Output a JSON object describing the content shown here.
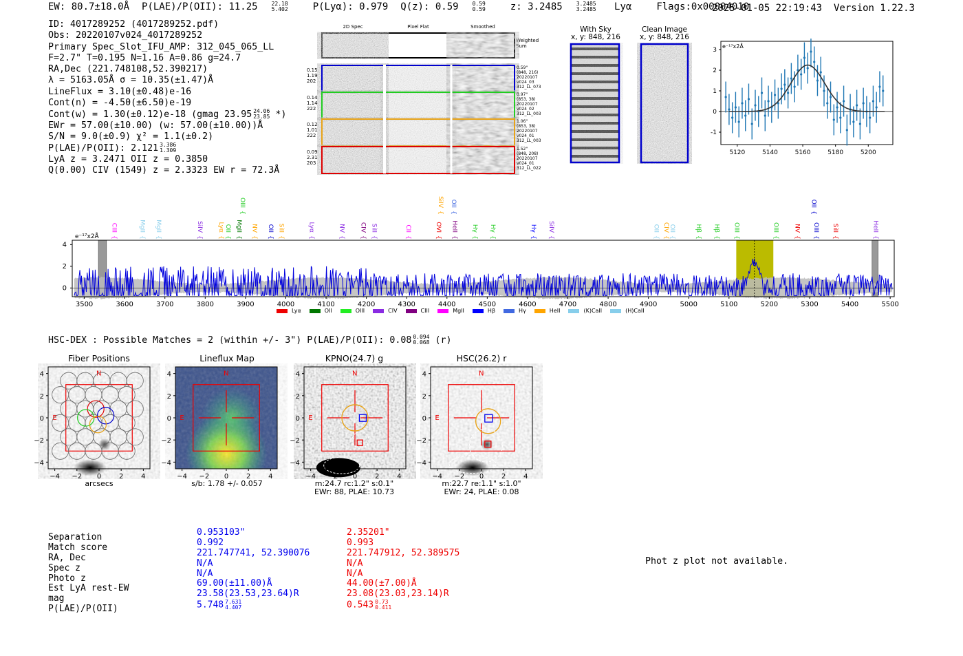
{
  "header": {
    "ew": "EW: 80.7±18.0Å",
    "plae": "P(LAE)/P(OII): 11.25",
    "plae_hi": "22.18",
    "plae_lo": "5.402",
    "plya": "P(Lyα): 0.979",
    "qz": "Q(z): 0.59",
    "qz_hi": "0.59",
    "qz_lo": "0.59",
    "z": "z: 3.2485",
    "z_hi": "3.2485",
    "z_lo": "3.2485",
    "line": "Lyα",
    "flags": "Flags:0x00004010",
    "timestamp": "2025-01-05 22:19:43",
    "version": "Version 1.22.3"
  },
  "info": {
    "id": "ID: 4017289252 (4017289252.pdf)",
    "obs": "Obs: 20220107v024_4017289252",
    "primary": "Primary Spec_Slot_IFU_AMP: 312_045_065_LL",
    "fwhm": "F=2.7\"  T=0.195  N=1.16  A=0.86  g=24.7",
    "radec": "RA,Dec (221.748108,52.390217)",
    "lambda": "λ = 5163.05Å   σ = 10.35(±1.47)Å",
    "lineflux": "LineFlux = 3.10(±0.48)e-16",
    "contn": "Cont(n) = -4.50(±6.50)e-19",
    "contw": "Cont(w) = 1.30(±0.12)e-18 (gmag 23.95",
    "contw_hi": "24.06",
    "contw_lo": "23.85",
    "contw_end": "*)",
    "ewr": "EWr = 57.00(±10.00) (w: 57.00(±10.00))Å",
    "sn": "S/N = 9.0(±0.9)  χ² = 1.1(±0.2)",
    "plae": "P(LAE)/P(OII): 2.121",
    "plae_hi": "3.386",
    "plae_lo": "1.309",
    "lya": "LyA z = 3.2471   OII z = 0.3850",
    "civ": "Q(0.00) CIV (1549) z = 2.3323   EW r = 72.3Å"
  },
  "cutouts": {
    "col_titles": [
      "2D Spec",
      "Pixel Flat",
      "Smoothed"
    ],
    "weighted_sum": "Weighted Sum",
    "rows": [
      {
        "stats": [
          "0.15",
          "1.19",
          "202"
        ],
        "notes": [
          "0.59\"",
          "(848, 216)",
          "20220107",
          "v024_03",
          "312_LL_073"
        ],
        "color": "#0000cc"
      },
      {
        "stats": [
          "0.14",
          "1.14",
          "222"
        ],
        "notes": [
          "0.97\"",
          "(853, 38)",
          "20220107",
          "v024_02",
          "312_LL_003"
        ],
        "color": "#22cc22"
      },
      {
        "stats": [
          "0.12",
          "1.01",
          "222"
        ],
        "notes": [
          "1.06\"",
          "(853, 38)",
          "20220107",
          "v024_01",
          "312_LL_003"
        ],
        "color": "#e8a317"
      },
      {
        "stats": [
          "0.09",
          "2.31",
          "203"
        ],
        "notes": [
          "1.52\"",
          "(848, 208)",
          "20220107",
          "v024_01",
          "312_LL_022"
        ],
        "color": "#dd0000"
      }
    ],
    "sky_title": "With Sky",
    "sky_xy": "x, y: 848, 216",
    "clean_title": "Clean Image",
    "clean_xy": "x, y: 848, 216"
  },
  "legend": [
    {
      "name": "Lyα",
      "color": "#ee0000"
    },
    {
      "name": "OII",
      "color": "#007700"
    },
    {
      "name": "OIII",
      "color": "#22ee22"
    },
    {
      "name": "CIV",
      "color": "#8a2be2"
    },
    {
      "name": "CIII",
      "color": "#800080"
    },
    {
      "name": "MgII",
      "color": "#ff00ff"
    },
    {
      "name": "Hβ",
      "color": "#0000ff"
    },
    {
      "name": "Hγ",
      "color": "#4169e1"
    },
    {
      "name": "HeII",
      "color": "#ffa500"
    },
    {
      "name": "(K)CaII",
      "color": "#87ceeb"
    },
    {
      "name": "(H)CaII",
      "color": "#87ceeb"
    }
  ],
  "line_marks": [
    {
      "name": "CIII",
      "w": 3570,
      "color": "#ff00ff",
      "tier": 0
    },
    {
      "name": "MgII",
      "w": 3640,
      "color": "#87ceeb",
      "tier": 0
    },
    {
      "name": "MgII",
      "w": 3680,
      "color": "#87ceeb",
      "tier": 0
    },
    {
      "name": "SiIV",
      "w": 3782,
      "color": "#8a2be2",
      "tier": 0
    },
    {
      "name": "Lyα",
      "w": 3835,
      "color": "#ffa500",
      "tier": 0
    },
    {
      "name": "OII",
      "w": 3852,
      "color": "#22cc22",
      "tier": 0
    },
    {
      "name": "MgII",
      "w": 3880,
      "color": "#007700",
      "tier": 0
    },
    {
      "name": "OIII",
      "w": 3888,
      "color": "#22cc22",
      "tier": 1
    },
    {
      "name": "NV",
      "w": 3918,
      "color": "#ffa500",
      "tier": 0
    },
    {
      "name": "OII",
      "w": 3958,
      "color": "#0000cc",
      "tier": 0
    },
    {
      "name": "SiII",
      "w": 3985,
      "color": "#ffa500",
      "tier": 0
    },
    {
      "name": "Lyα",
      "w": 4060,
      "color": "#8a2be2",
      "tier": 0
    },
    {
      "name": "NV",
      "w": 4135,
      "color": "#8a2be2",
      "tier": 0
    },
    {
      "name": "CIV",
      "w": 4188,
      "color": "#800080",
      "tier": 0
    },
    {
      "name": "SiII",
      "w": 4215,
      "color": "#8a2be2",
      "tier": 0
    },
    {
      "name": "CII",
      "w": 4300,
      "color": "#ff00ff",
      "tier": 0
    },
    {
      "name": "OVI",
      "w": 4375,
      "color": "#ee0000",
      "tier": 0
    },
    {
      "name": "SiIV",
      "w": 4380,
      "color": "#ffa500",
      "tier": 1
    },
    {
      "name": "OII",
      "w": 4412,
      "color": "#4169e1",
      "tier": 1
    },
    {
      "name": "HeII",
      "w": 4415,
      "color": "#800080",
      "tier": 0
    },
    {
      "name": "Hγ",
      "w": 4465,
      "color": "#22cc22",
      "tier": 0
    },
    {
      "name": "Hγ",
      "w": 4510,
      "color": "#22cc22",
      "tier": 0
    },
    {
      "name": "Hγ",
      "w": 4610,
      "color": "#0000ff",
      "tier": 0
    },
    {
      "name": "SiIV",
      "w": 4655,
      "color": "#8a2be2",
      "tier": 0
    },
    {
      "name": "OII",
      "w": 4915,
      "color": "#87ceeb",
      "tier": 0
    },
    {
      "name": "CIV",
      "w": 4940,
      "color": "#ffa500",
      "tier": 0
    },
    {
      "name": "OII",
      "w": 4955,
      "color": "#87ceeb",
      "tier": 0
    },
    {
      "name": "Hβ",
      "w": 5020,
      "color": "#22cc22",
      "tier": 0
    },
    {
      "name": "Hβ",
      "w": 5065,
      "color": "#22cc22",
      "tier": 0
    },
    {
      "name": "OIII",
      "w": 5115,
      "color": "#22cc22",
      "tier": 0
    },
    {
      "name": "OIII",
      "w": 5212,
      "color": "#22cc22",
      "tier": 0
    },
    {
      "name": "NV",
      "w": 5265,
      "color": "#ee0000",
      "tier": 0
    },
    {
      "name": "OII",
      "w": 5306,
      "color": "#0000cc",
      "tier": 1
    },
    {
      "name": "OIII",
      "w": 5312,
      "color": "#0000cc",
      "tier": 0
    },
    {
      "name": "SiII",
      "w": 5360,
      "color": "#ee0000",
      "tier": 0
    },
    {
      "name": "HeII",
      "w": 5460,
      "color": "#8a2be2",
      "tier": 0
    }
  ],
  "hsc": {
    "header": "HSC-DEX : Possible Matches = 2 (within +/- 3\")  P(LAE)/P(OII): 0.08",
    "hi": "0.094",
    "lo": "0.068",
    "band": "(r)",
    "panels": [
      {
        "title": "Fiber Positions",
        "caption1": "arcsecs",
        "caption2": ""
      },
      {
        "title": "Lineflux Map",
        "caption1": "s/b: 1.78 +/- 0.057",
        "caption2": ""
      },
      {
        "title": "KPNO(24.7) g",
        "caption1": "m:24.7 rc:1.2\"  s:0.1\"",
        "caption2": "EWr: 88, PLAE: 10.73"
      },
      {
        "title": "HSC(26.2) r",
        "caption1": "m:22.7  re:1.1\"  s:1.0\"",
        "caption2": "EWr: 24, PLAE: 0.08"
      }
    ],
    "north": "N",
    "east": "E"
  },
  "table": {
    "labels": [
      "Separation",
      "Match score",
      "RA, Dec",
      "Spec z",
      "Photo z",
      "Est LyA rest-EW",
      "mag",
      "P(LAE)/P(OII)"
    ],
    "blue": [
      "0.953103\"",
      "0.992",
      "221.747741, 52.390076",
      "N/A",
      "N/A",
      "69.00(±11.00)Å",
      "23.58(23.53,23.64)R",
      "5.748"
    ],
    "blue_hi": "7.631",
    "blue_lo": "4.407",
    "red": [
      "2.35201\"",
      "0.993",
      "221.747912, 52.389575",
      "N/A",
      "N/A",
      "44.00(±7.00)Å",
      "23.08(23.03,23.14)R",
      "0.543"
    ],
    "red_hi": "0.73",
    "red_lo": "0.411"
  },
  "photz_note": "Phot z plot not available.",
  "colors": {
    "blue": "#0000ee",
    "red": "#ee0000",
    "spec": "#0000dd",
    "highlight": "#bbbb00"
  },
  "chart_data": [
    {
      "type": "line",
      "title": "",
      "ylabel": "e⁻¹⁷x2Å",
      "xlabel": "",
      "xlim": [
        5110,
        5215
      ],
      "ylim": [
        -1.6,
        3.4
      ],
      "xticks": [
        5120,
        5140,
        5160,
        5180,
        5200
      ],
      "yticks": [
        3,
        2,
        1,
        0,
        -1
      ],
      "fit": {
        "amp": 2.25,
        "center": 5163.05,
        "sigma": 10.35
      },
      "points": [
        [
          5113,
          0.7
        ],
        [
          5115,
          0.1
        ],
        [
          5117,
          -0.3
        ],
        [
          5119,
          0.2
        ],
        [
          5121,
          -0.5
        ],
        [
          5123,
          0.4
        ],
        [
          5125,
          -0.2
        ],
        [
          5127,
          0.6
        ],
        [
          5129,
          -0.6
        ],
        [
          5131,
          0.3
        ],
        [
          5133,
          0.0
        ],
        [
          5135,
          0.9
        ],
        [
          5137,
          -0.2
        ],
        [
          5139,
          0.5
        ],
        [
          5141,
          0.2
        ],
        [
          5143,
          0.8
        ],
        [
          5145,
          0.4
        ],
        [
          5147,
          1.1
        ],
        [
          5149,
          1.3
        ],
        [
          5151,
          0.9
        ],
        [
          5153,
          1.6
        ],
        [
          5155,
          1.2
        ],
        [
          5157,
          2.0
        ],
        [
          5159,
          1.8
        ],
        [
          5161,
          2.6
        ],
        [
          5163,
          2.1
        ],
        [
          5165,
          2.9
        ],
        [
          5167,
          2.4
        ],
        [
          5169,
          1.5
        ],
        [
          5171,
          1.9
        ],
        [
          5173,
          1.0
        ],
        [
          5175,
          0.4
        ],
        [
          5177,
          0.7
        ],
        [
          5179,
          -0.4
        ],
        [
          5181,
          0.2
        ],
        [
          5183,
          -0.3
        ],
        [
          5185,
          0.5
        ],
        [
          5187,
          -0.9
        ],
        [
          5189,
          0.1
        ],
        [
          5191,
          -0.5
        ],
        [
          5193,
          0.3
        ],
        [
          5195,
          -0.6
        ],
        [
          5197,
          0.4
        ],
        [
          5199,
          0.0
        ],
        [
          5201,
          -0.3
        ],
        [
          5203,
          0.5
        ],
        [
          5205,
          0.2
        ],
        [
          5207,
          1.2
        ],
        [
          5209,
          1.0
        ]
      ],
      "errors": 0.75
    },
    {
      "type": "line",
      "title": "",
      "ylabel": "e⁻¹⁷x2Å",
      "xlim": [
        3470,
        5510
      ],
      "ylim": [
        -0.8,
        4.4
      ],
      "xticks": [
        3500,
        3600,
        3700,
        3800,
        3900,
        4000,
        4100,
        4200,
        4300,
        4400,
        4500,
        4600,
        4700,
        4800,
        4900,
        5000,
        5100,
        5200,
        5300,
        5400,
        5500
      ],
      "yticks": [
        4,
        2,
        0
      ],
      "highlight_range": [
        5118,
        5210
      ],
      "peak": 5163,
      "gray_bands": [
        [
          3535,
          3555
        ],
        [
          5455,
          5470
        ]
      ],
      "series": [
        {
          "name": "spectrum",
          "note": "noisy continuum near 0 with emission peak near 5163Å"
        },
        {
          "name": "error",
          "note": "gray error envelope"
        }
      ]
    }
  ]
}
